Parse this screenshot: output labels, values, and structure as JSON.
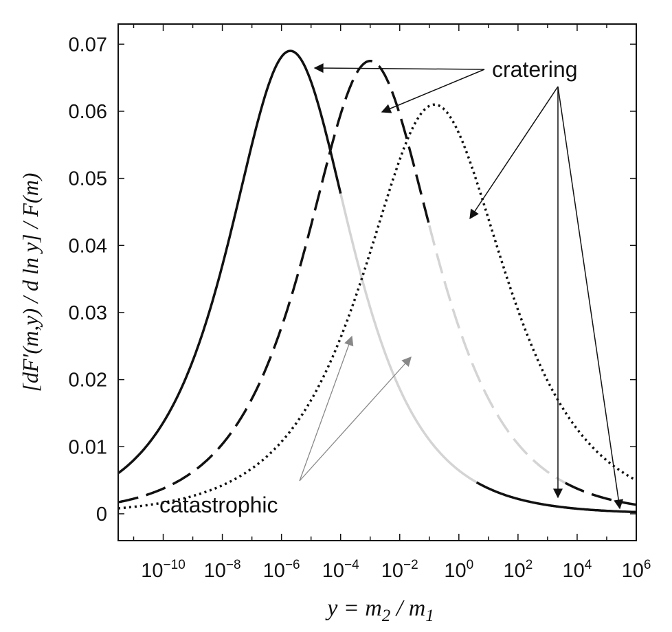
{
  "chart_data": {
    "type": "line",
    "title": "",
    "xlabel": {
      "prefix": "y = m",
      "sub1": "2",
      "mid": " / m",
      "sub2": "1"
    },
    "ylabel": "[dF′(m,y) / d ln y] / F(m)",
    "x_scale": "log",
    "xlim": [
      3e-12,
      1000000.0
    ],
    "ylim": [
      -0.004,
      0.073
    ],
    "yticks": [
      0,
      0.01,
      0.02,
      0.03,
      0.04,
      0.05,
      0.06,
      0.07
    ],
    "ytick_labels": [
      "0",
      "0.01",
      "0.02",
      "0.03",
      "0.04",
      "0.05",
      "0.06",
      "0.07"
    ],
    "xtick_exponents": [
      "-10",
      "-8",
      "-6",
      "-4",
      "-2",
      "0",
      "2",
      "4",
      "6"
    ],
    "xtick_base": "10",
    "grid": false,
    "legend": "none",
    "series": [
      {
        "style": "solid",
        "peak_y": 2e-06,
        "peak_value": 0.069,
        "width_decades": 4.1,
        "break_y": 0.0001,
        "color_cratering": "#111111",
        "color_catastrophic": "#d4d4d4"
      },
      {
        "style": "dashed",
        "peak_y": 0.001,
        "peak_value": 0.0675,
        "width_decades": 4.3,
        "break_y": 0.1,
        "color_cratering": "#111111",
        "color_catastrophic": "#d4d4d4"
      },
      {
        "style": "dotted",
        "peak_y": 0.15,
        "peak_value": 0.061,
        "width_decades": 4.7,
        "break_y": null,
        "color_cratering": "#111111",
        "color_catastrophic": "#d4d4d4"
      }
    ],
    "annotations": [
      {
        "text": "cratering",
        "color": "#111111"
      },
      {
        "text": "catastrophic",
        "color": "#888888"
      }
    ]
  }
}
